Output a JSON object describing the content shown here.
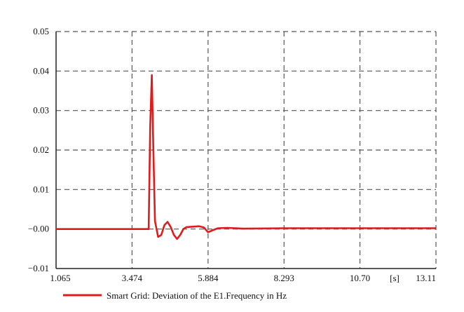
{
  "chart_data": {
    "type": "line",
    "xlabel": "",
    "ylabel": "",
    "x_unit_label": "[s]",
    "xlim": [
      1.065,
      13.11
    ],
    "ylim": [
      -0.01,
      0.05
    ],
    "x_ticks": [
      1.065,
      3.474,
      5.884,
      8.293,
      10.7,
      13.11
    ],
    "x_tick_labels": [
      "1.065",
      "3.474",
      "5.884",
      "8.293",
      "10.70",
      "13.11"
    ],
    "y_ticks": [
      -0.01,
      0.0,
      0.01,
      0.02,
      0.03,
      0.04,
      0.05
    ],
    "y_tick_labels": [
      "−0.01",
      "−0.00",
      "0.01",
      "0.02",
      "0.03",
      "0.04",
      "0.05"
    ],
    "grid": true,
    "legend_position": "bottom-left",
    "series": [
      {
        "name": "Smart Grid: Deviation of the E1.Frequency in Hz",
        "color": "#e01b1b",
        "points": [
          [
            1.065,
            0.0
          ],
          [
            3.474,
            0.0
          ],
          [
            3.95,
            0.0
          ],
          [
            4.0,
            0.0
          ],
          [
            4.05,
            0.026
          ],
          [
            4.1,
            0.039
          ],
          [
            4.15,
            0.02
          ],
          [
            4.2,
            0.002
          ],
          [
            4.3,
            -0.002
          ],
          [
            4.4,
            -0.0015
          ],
          [
            4.5,
            0.001
          ],
          [
            4.6,
            0.0018
          ],
          [
            4.7,
            0.0005
          ],
          [
            4.8,
            -0.0015
          ],
          [
            4.9,
            -0.0025
          ],
          [
            5.0,
            -0.0015
          ],
          [
            5.1,
            0.0
          ],
          [
            5.2,
            0.0005
          ],
          [
            5.4,
            0.0006
          ],
          [
            5.6,
            0.0007
          ],
          [
            5.75,
            0.0004
          ],
          [
            5.884,
            -0.0008
          ],
          [
            6.0,
            -0.0004
          ],
          [
            6.2,
            0.0002
          ],
          [
            6.5,
            0.0003
          ],
          [
            7.0,
            0.0001
          ],
          [
            8.293,
            0.0002
          ],
          [
            10.7,
            0.0002
          ],
          [
            13.11,
            0.0002
          ]
        ]
      }
    ]
  }
}
